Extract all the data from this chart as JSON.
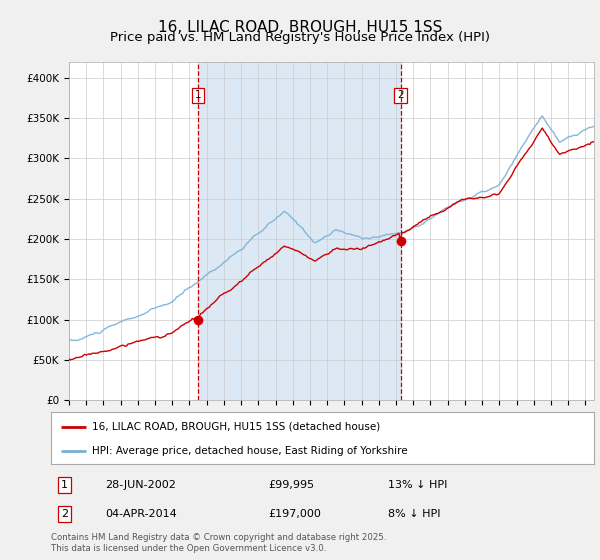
{
  "title": "16, LILAC ROAD, BROUGH, HU15 1SS",
  "subtitle": "Price paid vs. HM Land Registry's House Price Index (HPI)",
  "legend_line1": "16, LILAC ROAD, BROUGH, HU15 1SS (detached house)",
  "legend_line2": "HPI: Average price, detached house, East Riding of Yorkshire",
  "footnote": "Contains HM Land Registry data © Crown copyright and database right 2025.\nThis data is licensed under the Open Government Licence v3.0.",
  "sale1_date": "28-JUN-2002",
  "sale1_price": "£99,995",
  "sale1_hpi": "13% ↓ HPI",
  "sale1_year": 2002.49,
  "sale1_value": 99995,
  "sale2_date": "04-APR-2014",
  "sale2_price": "£197,000",
  "sale2_hpi": "8% ↓ HPI",
  "sale2_year": 2014.26,
  "sale2_value": 197000,
  "ownership_start": 2002.49,
  "ownership_end": 2014.26,
  "ownership_color": "#dce9f5",
  "red_line_color": "#cc0000",
  "blue_line_color": "#7ab0d4",
  "dashed_line_color": "#cc0000",
  "marker_color": "#cc0000",
  "background_color": "#f0f0f0",
  "plot_bg_color": "#ffffff",
  "grid_color": "#cccccc",
  "ylim": [
    0,
    420000
  ],
  "xmin": 1995,
  "xmax": 2025.5,
  "title_fontsize": 11,
  "subtitle_fontsize": 9.5,
  "tick_fontsize": 7.5,
  "label_fontsize": 8
}
